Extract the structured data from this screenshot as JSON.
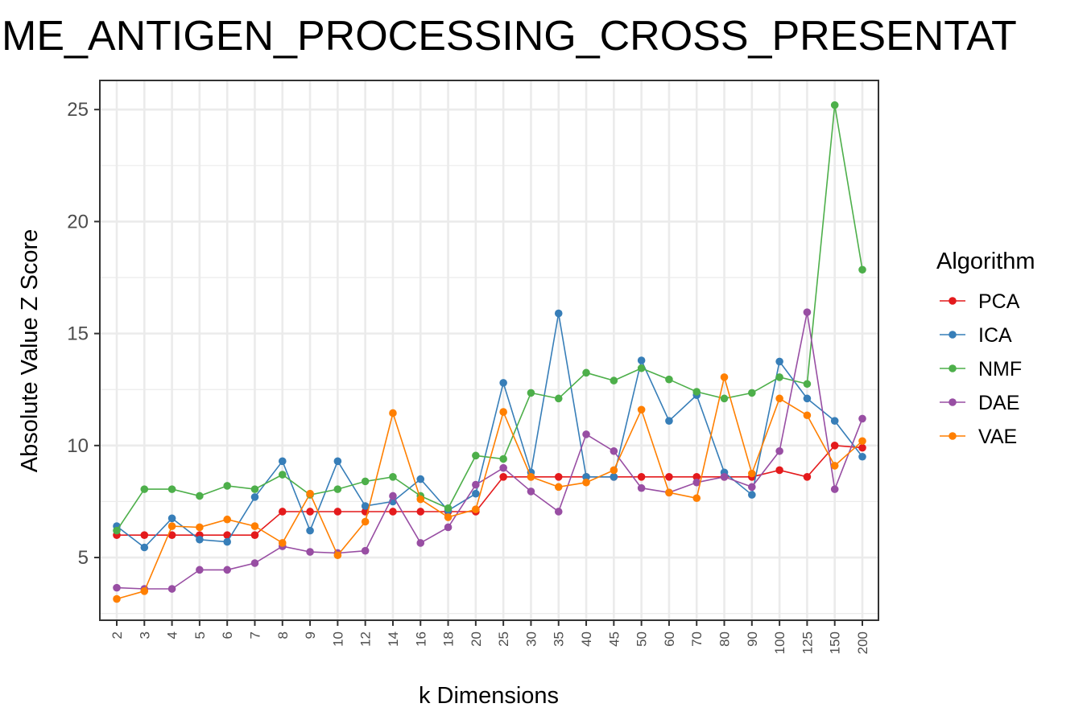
{
  "chart_data": {
    "type": "line",
    "title": "ME_ANTIGEN_PROCESSING_CROSS_PRESENTAT",
    "xlabel": "k Dimensions",
    "ylabel": "Absolute Value Z Score",
    "ylim": [
      2.2,
      26.3
    ],
    "y_ticks": [
      5,
      10,
      15,
      20,
      25
    ],
    "grid": true,
    "legend_title": "Algorithm",
    "legend_position": "right",
    "categories": [
      "2",
      "3",
      "4",
      "5",
      "6",
      "7",
      "8",
      "9",
      "10",
      "12",
      "14",
      "16",
      "18",
      "20",
      "25",
      "30",
      "35",
      "40",
      "45",
      "50",
      "60",
      "70",
      "80",
      "90",
      "100",
      "125",
      "150",
      "200"
    ],
    "series": [
      {
        "name": "PCA",
        "color": "#e41a1c",
        "values": [
          6.0,
          6.0,
          6.0,
          6.0,
          6.0,
          6.0,
          7.05,
          7.05,
          7.05,
          7.05,
          7.05,
          7.05,
          7.05,
          7.05,
          8.6,
          8.6,
          8.6,
          8.6,
          8.6,
          8.6,
          8.6,
          8.6,
          8.6,
          8.6,
          8.9,
          8.6,
          10.0,
          9.9
        ]
      },
      {
        "name": "ICA",
        "color": "#377eb8",
        "values": [
          6.4,
          5.45,
          6.75,
          5.8,
          5.7,
          7.7,
          9.3,
          6.2,
          9.3,
          7.3,
          7.5,
          8.5,
          7.1,
          7.85,
          12.8,
          8.8,
          15.9,
          8.6,
          8.6,
          13.8,
          11.1,
          12.25,
          8.8,
          7.8,
          13.75,
          12.1,
          11.1,
          9.5
        ]
      },
      {
        "name": "NMF",
        "color": "#4daf4a",
        "values": [
          6.2,
          8.05,
          8.05,
          7.75,
          8.2,
          8.05,
          8.7,
          7.8,
          8.05,
          8.4,
          8.6,
          7.75,
          7.2,
          9.55,
          9.4,
          12.35,
          12.1,
          13.25,
          12.9,
          13.45,
          12.95,
          12.4,
          12.1,
          12.35,
          13.05,
          12.75,
          25.2,
          17.85
        ]
      },
      {
        "name": "DAE",
        "color": "#984ea3",
        "values": [
          3.65,
          3.6,
          3.6,
          4.45,
          4.45,
          4.75,
          5.5,
          5.25,
          5.2,
          5.3,
          7.75,
          5.65,
          6.35,
          8.25,
          9.0,
          7.95,
          7.05,
          10.5,
          9.75,
          8.1,
          7.9,
          8.35,
          8.6,
          8.15,
          9.75,
          15.95,
          8.05,
          11.2
        ]
      },
      {
        "name": "VAE",
        "color": "#ff7f00",
        "values": [
          3.15,
          3.5,
          6.4,
          6.35,
          6.7,
          6.4,
          5.65,
          7.85,
          5.1,
          6.6,
          11.45,
          7.6,
          6.8,
          7.15,
          11.5,
          8.6,
          8.15,
          8.35,
          8.9,
          11.6,
          7.9,
          7.65,
          13.05,
          8.75,
          12.1,
          11.35,
          9.1,
          10.2
        ]
      }
    ]
  }
}
